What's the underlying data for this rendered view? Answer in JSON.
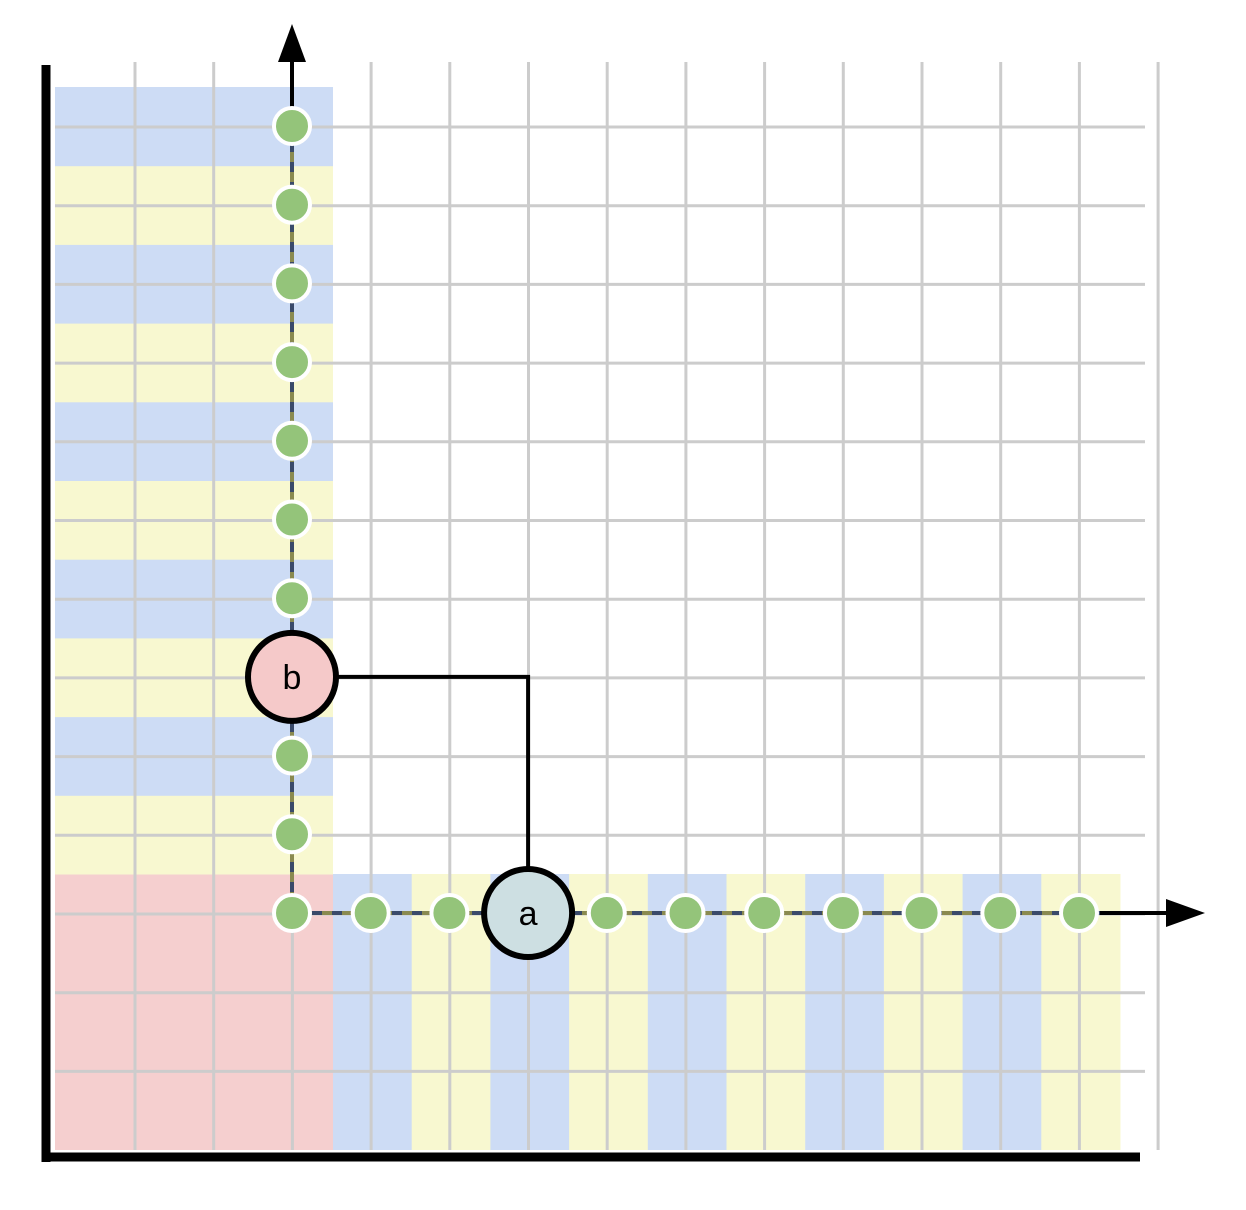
{
  "colors": {
    "grid": "#cccccc",
    "band_blue": "#cddcf5",
    "band_yellow": "#f8f8d0",
    "corner_pink": "#f5cfcf",
    "axis": "#000000",
    "dot_fill": "#94c47a",
    "dot_stroke": "#ffffff",
    "dash_dark": "#3a4a6a",
    "dash_light": "#8a8a50",
    "node_a_fill": "#cddfe2",
    "node_b_fill": "#f5c9c9"
  },
  "diagram": {
    "nodes": [
      {
        "id": "a",
        "label": "a",
        "axis": "horizontal",
        "index": 3
      },
      {
        "id": "b",
        "label": "b",
        "axis": "vertical",
        "index": 3
      }
    ],
    "horizontal_dot_count": 11,
    "vertical_dot_count": 11,
    "connector": {
      "from": "b",
      "to": "a",
      "shape": "elbow"
    }
  }
}
